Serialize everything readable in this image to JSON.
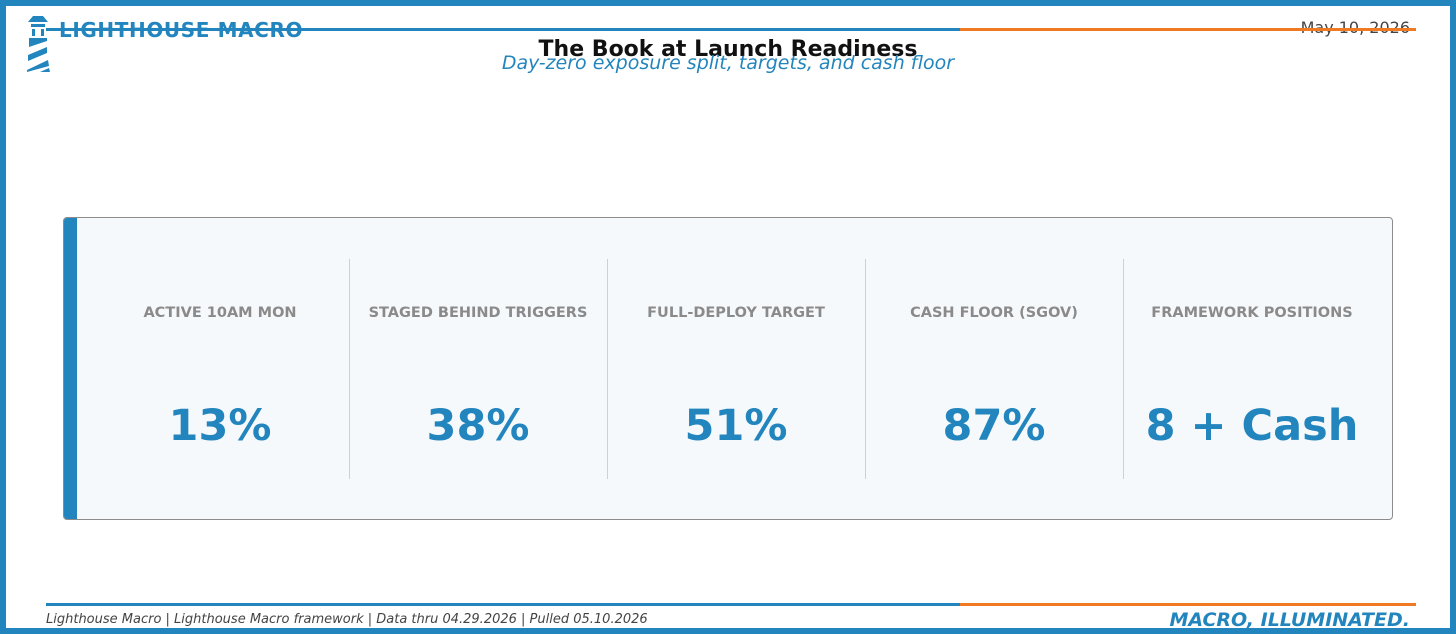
{
  "header": {
    "brand": "LIGHTHOUSE MACRO",
    "date": "May 10, 2026",
    "title": "The Book at Launch Readiness",
    "subtitle": "Day-zero exposure split, targets, and cash floor"
  },
  "metrics": [
    {
      "label": "ACTIVE 10AM MON",
      "value": "13%"
    },
    {
      "label": "STAGED BEHIND TRIGGERS",
      "value": "38%"
    },
    {
      "label": "FULL-DEPLOY TARGET",
      "value": "51%"
    },
    {
      "label": "CASH FLOOR (SGOV)",
      "value": "87%"
    },
    {
      "label": "FRAMEWORK POSITIONS",
      "value": "8 + Cash"
    }
  ],
  "footer": {
    "note": "Lighthouse Macro | Lighthouse Macro framework | Data thru 04.29.2026 | Pulled 05.10.2026",
    "tagline": "MACRO, ILLUMINATED."
  },
  "colors": {
    "brand_blue": "#2385bd",
    "accent_orange": "#f07a22",
    "panel_background": "#f6f9fc"
  },
  "icons": {
    "logo": "lighthouse-icon"
  }
}
